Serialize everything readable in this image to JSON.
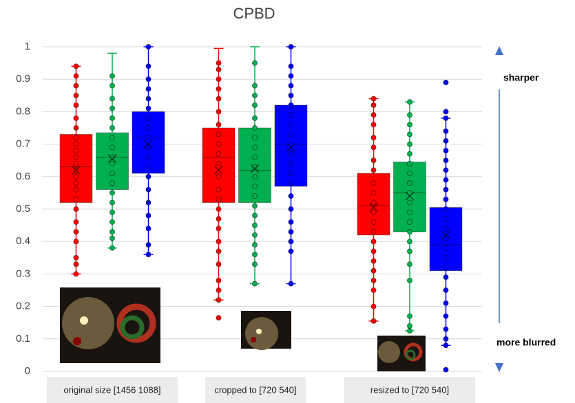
{
  "chart_data": {
    "type": "box",
    "title": "CPBD",
    "categories": [
      "original size [1456 1088]",
      "cropped to [720 540]",
      "resized to [720 540]"
    ],
    "ylim": [
      0,
      1
    ],
    "yticks": [
      0,
      0.1,
      0.2,
      0.3,
      0.4,
      0.5,
      0.6,
      0.7,
      0.8,
      0.9,
      1
    ],
    "grid": true,
    "annotations": [
      "sharper",
      "more blurred"
    ],
    "series": [
      {
        "color": "#ff0000",
        "min": [
          0.3,
          0.22,
          0.155
        ],
        "q1": [
          0.52,
          0.52,
          0.42
        ],
        "median": [
          0.63,
          0.66,
          0.51
        ],
        "q3": [
          0.73,
          0.75,
          0.61
        ],
        "max": [
          0.94,
          0.995,
          0.84
        ],
        "mean": [
          0.62,
          0.62,
          0.505
        ],
        "outliers": [
          [],
          [
            0.165
          ],
          []
        ],
        "points": [
          [
            0.3,
            0.33,
            0.35,
            0.4,
            0.43,
            0.46,
            0.5,
            0.53,
            0.56,
            0.58,
            0.6,
            0.62,
            0.64,
            0.66,
            0.68,
            0.7,
            0.72,
            0.75,
            0.78,
            0.82,
            0.85,
            0.88,
            0.91,
            0.94
          ],
          [
            0.22,
            0.25,
            0.28,
            0.33,
            0.37,
            0.4,
            0.44,
            0.47,
            0.5,
            0.53,
            0.56,
            0.6,
            0.64,
            0.67,
            0.7,
            0.73,
            0.76,
            0.8,
            0.84,
            0.87,
            0.9,
            0.93,
            0.95
          ],
          [
            0.155,
            0.2,
            0.25,
            0.28,
            0.31,
            0.34,
            0.37,
            0.4,
            0.43,
            0.46,
            0.49,
            0.52,
            0.55,
            0.58,
            0.62,
            0.65,
            0.69,
            0.72,
            0.76,
            0.79,
            0.82,
            0.84
          ]
        ]
      },
      {
        "color": "#00b050",
        "min": [
          0.38,
          0.27,
          0.125
        ],
        "q1": [
          0.56,
          0.52,
          0.43
        ],
        "median": [
          0.66,
          0.62,
          0.55
        ],
        "q3": [
          0.735,
          0.75,
          0.645
        ],
        "max": [
          0.98,
          1.0,
          0.83
        ],
        "mean": [
          0.655,
          0.625,
          0.54
        ],
        "outliers": [
          [],
          [],
          []
        ],
        "points": [
          [
            0.38,
            0.41,
            0.43,
            0.46,
            0.49,
            0.52,
            0.55,
            0.58,
            0.61,
            0.64,
            0.66,
            0.69,
            0.72,
            0.75,
            0.78,
            0.81,
            0.84,
            0.88,
            0.91
          ],
          [
            0.27,
            0.33,
            0.36,
            0.39,
            0.42,
            0.45,
            0.48,
            0.51,
            0.54,
            0.57,
            0.6,
            0.63,
            0.66,
            0.69,
            0.72,
            0.75,
            0.78,
            0.82,
            0.85,
            0.88,
            0.95
          ],
          [
            0.125,
            0.14,
            0.17,
            0.28,
            0.33,
            0.37,
            0.4,
            0.43,
            0.46,
            0.49,
            0.52,
            0.55,
            0.58,
            0.61,
            0.64,
            0.67,
            0.7,
            0.73,
            0.76,
            0.79,
            0.83
          ]
        ]
      },
      {
        "color": "#0000ff",
        "min": [
          0.36,
          0.27,
          0.08
        ],
        "q1": [
          0.61,
          0.57,
          0.31
        ],
        "median": [
          0.72,
          0.7,
          0.39
        ],
        "q3": [
          0.8,
          0.82,
          0.505
        ],
        "max": [
          1.0,
          1.0,
          0.78
        ],
        "mean": [
          0.7,
          0.69,
          0.42
        ],
        "outliers": [
          [],
          [],
          [
            0.89,
            0.8,
            0.005
          ]
        ],
        "points": [
          [
            0.36,
            0.39,
            0.44,
            0.48,
            0.52,
            0.56,
            0.6,
            0.63,
            0.66,
            0.69,
            0.72,
            0.75,
            0.78,
            0.81,
            0.84,
            0.87,
            0.9,
            0.94,
            1.0
          ],
          [
            0.27,
            0.37,
            0.4,
            0.43,
            0.46,
            0.5,
            0.54,
            0.58,
            0.61,
            0.64,
            0.67,
            0.7,
            0.73,
            0.76,
            0.79,
            0.82,
            0.85,
            0.88,
            0.91,
            0.94,
            1.0
          ],
          [
            0.08,
            0.1,
            0.13,
            0.17,
            0.21,
            0.25,
            0.29,
            0.32,
            0.35,
            0.38,
            0.41,
            0.44,
            0.47,
            0.5,
            0.53,
            0.56,
            0.59,
            0.62,
            0.65,
            0.68,
            0.71,
            0.74,
            0.78
          ]
        ]
      }
    ]
  }
}
